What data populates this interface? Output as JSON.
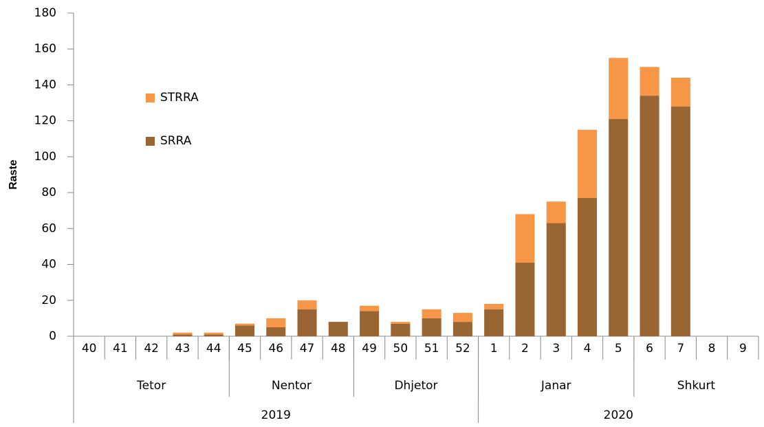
{
  "chart_data": {
    "type": "stacked_bar",
    "y_label": "Raste",
    "categories": [
      "40",
      "41",
      "42",
      "43",
      "44",
      "45",
      "46",
      "47",
      "48",
      "49",
      "50",
      "51",
      "52",
      "1",
      "2",
      "3",
      "4",
      "5",
      "6",
      "7",
      "8",
      "9"
    ],
    "month_groups": [
      {
        "label": "Tetor",
        "size": 5
      },
      {
        "label": "Nentor",
        "size": 4
      },
      {
        "label": "Dhjetor",
        "size": 4
      },
      {
        "label": "Janar",
        "size": 5
      },
      {
        "label": "Shkurt",
        "size": 4
      }
    ],
    "year_groups": [
      {
        "label": "2019",
        "size": 13
      },
      {
        "label": "2020",
        "size": 9
      }
    ],
    "series": [
      {
        "name": "SRRA",
        "color": "#996633",
        "values": [
          0,
          0,
          0,
          1,
          1,
          6,
          5,
          15,
          8,
          14,
          7,
          10,
          8,
          15,
          41,
          63,
          77,
          121,
          134,
          128,
          0,
          0
        ]
      },
      {
        "name": "STRRA",
        "color": "#f79646",
        "values": [
          0,
          0,
          0,
          1,
          1,
          1,
          5,
          5,
          0,
          3,
          1,
          5,
          5,
          3,
          27,
          12,
          38,
          34,
          16,
          16,
          0,
          0
        ]
      }
    ],
    "ylim": [
      0,
      180
    ],
    "yticks": [
      0,
      20,
      40,
      60,
      80,
      100,
      120,
      140,
      160,
      180
    ]
  }
}
